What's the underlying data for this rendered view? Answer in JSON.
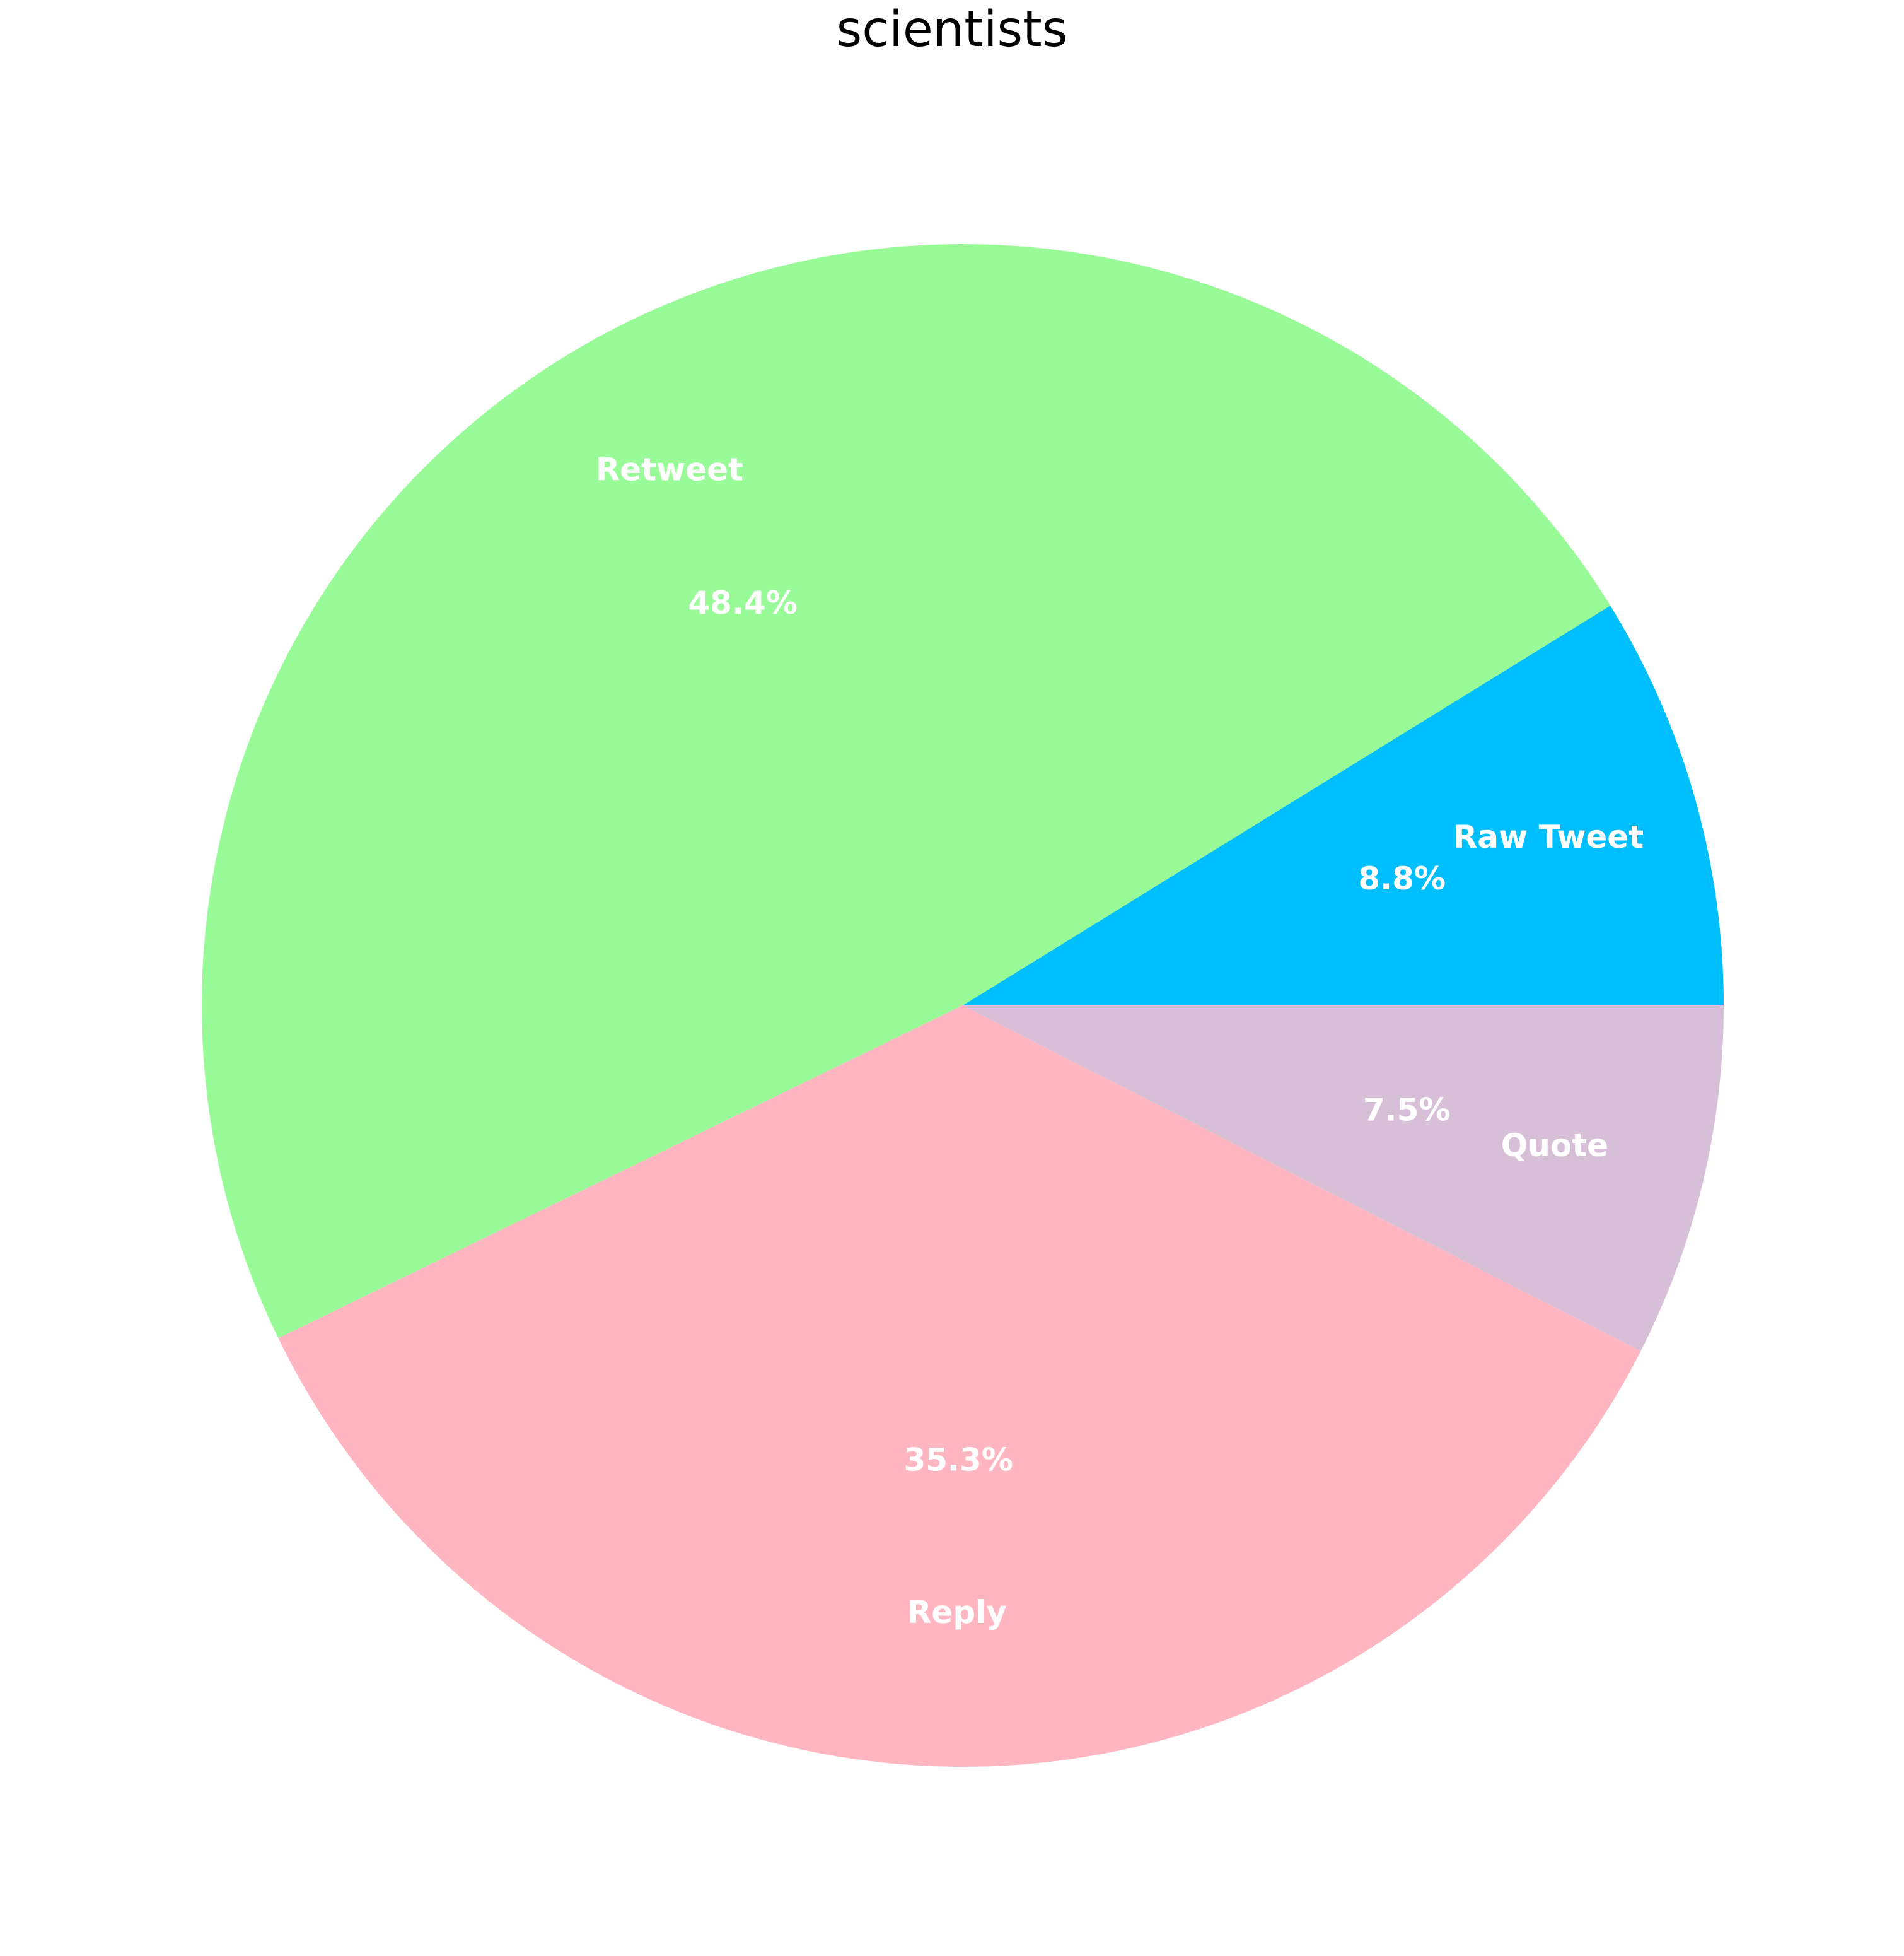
{
  "chart_data": {
    "type": "pie",
    "title": "scientists",
    "start_angle_deg": 0,
    "direction": "counterclockwise",
    "slices": [
      {
        "label": "Raw Tweet",
        "percent_label": "8.8%",
        "value": 8.8,
        "color": "#00BFFF"
      },
      {
        "label": "Retweet",
        "percent_label": "48.4%",
        "value": 48.4,
        "color": "#98FB98"
      },
      {
        "label": "Reply",
        "percent_label": "35.3%",
        "value": 35.3,
        "color": "#FFB6C1"
      },
      {
        "label": "Quote",
        "percent_label": "7.5%",
        "value": 7.5,
        "color": "#D8BFD8"
      }
    ],
    "label_color": "#ffffff",
    "legend": "none"
  }
}
